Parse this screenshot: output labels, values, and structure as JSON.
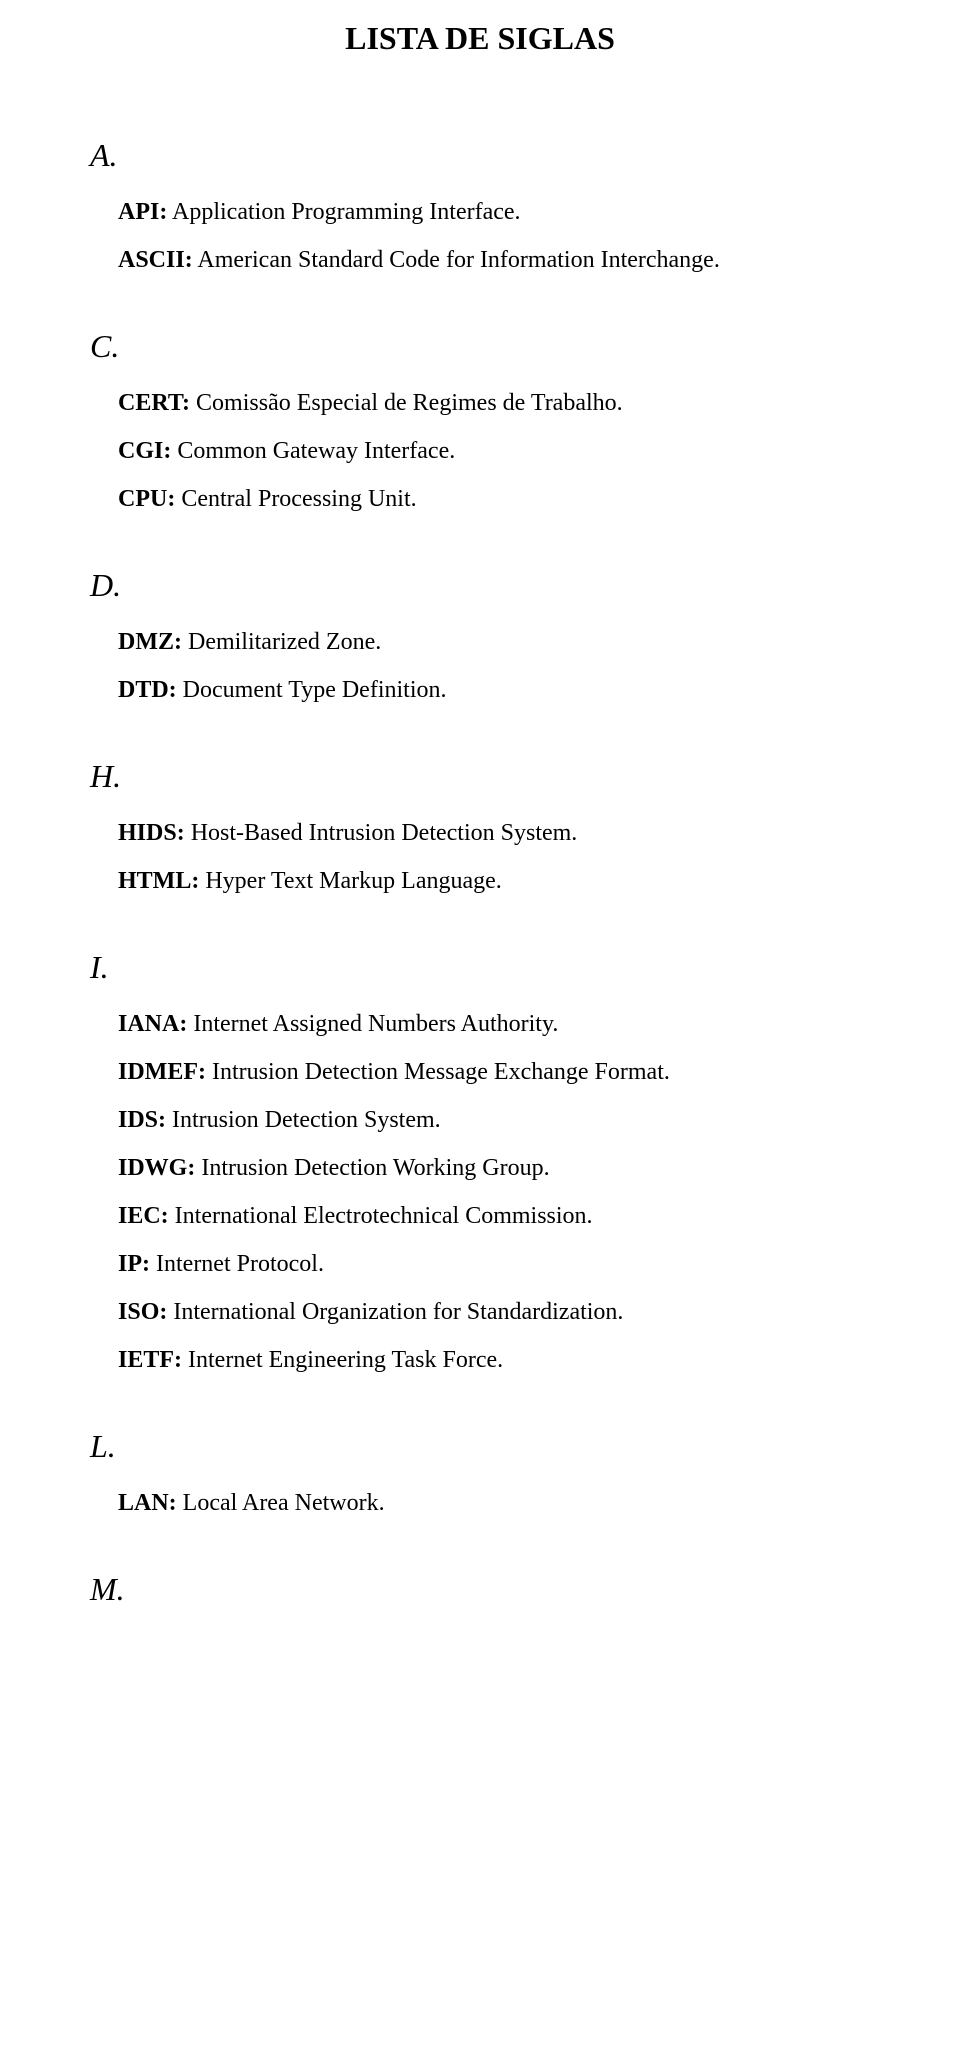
{
  "title": "LISTA DE SIGLAS",
  "sections": [
    {
      "letter": "A.",
      "entries": [
        {
          "acronym": "API:",
          "definition": " Application Programming Interface."
        },
        {
          "acronym": "ASCII:",
          "definition": " American Standard Code for Information Interchange."
        }
      ]
    },
    {
      "letter": "C.",
      "entries": [
        {
          "acronym": "CERT:",
          "definition": " Comissão Especial de Regimes de Trabalho."
        },
        {
          "acronym": "CGI:",
          "definition": " Common Gateway Interface."
        },
        {
          "acronym": "CPU:",
          "definition": " Central Processing Unit."
        }
      ]
    },
    {
      "letter": "D.",
      "entries": [
        {
          "acronym": "DMZ:",
          "definition": " Demilitarized Zone."
        },
        {
          "acronym": "DTD:",
          "definition": " Document Type Definition."
        }
      ]
    },
    {
      "letter": "H.",
      "entries": [
        {
          "acronym": "HIDS:",
          "definition": " Host-Based Intrusion Detection System."
        },
        {
          "acronym": "HTML:",
          "definition": " Hyper Text Markup Language."
        }
      ]
    },
    {
      "letter": "I.",
      "entries": [
        {
          "acronym": "IANA:",
          "definition": " Internet Assigned Numbers Authority."
        },
        {
          "acronym": "IDMEF:",
          "definition": " Intrusion Detection Message Exchange Format."
        },
        {
          "acronym": "IDS:",
          "definition": " Intrusion Detection System."
        },
        {
          "acronym": "IDWG:",
          "definition": " Intrusion Detection Working Group."
        },
        {
          "acronym": "IEC:",
          "definition": " International Electrotechnical Commission."
        },
        {
          "acronym": "IP:",
          "definition": " Internet Protocol."
        },
        {
          "acronym": "ISO:",
          "definition": " International Organization for Standardization."
        },
        {
          "acronym": "IETF:",
          "definition": " Internet Engineering Task Force."
        }
      ]
    },
    {
      "letter": "L.",
      "entries": [
        {
          "acronym": "LAN:",
          "definition": " Local Area Network."
        }
      ]
    },
    {
      "letter": "M.",
      "entries": []
    }
  ]
}
